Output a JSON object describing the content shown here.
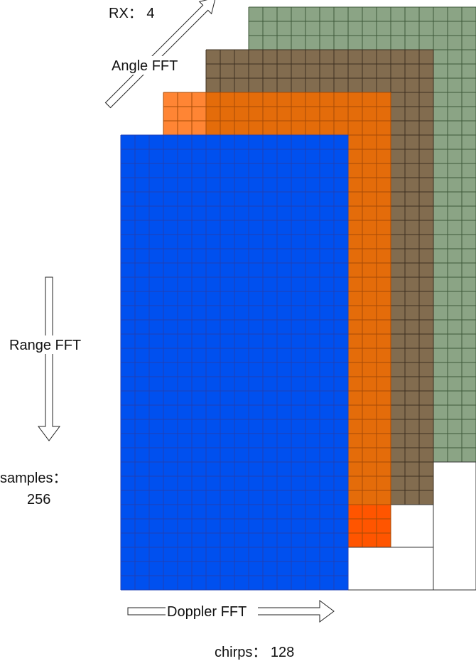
{
  "labels": {
    "rx": "RX： 4",
    "angle_fft": "Angle FFT",
    "range_fft": "Range FFT",
    "samples_line1": "samples：",
    "samples_line2": "256",
    "doppler_fft": "Doppler FFT",
    "chirps": "chirps： 128"
  },
  "colors": {
    "rx1": "#0050ef",
    "rx2": "#e46c0a",
    "rx2_highlight_top": "#ff8534",
    "rx2_highlight_bottom": "#ff5500",
    "rx3": "#826c4f",
    "rx4": "#8ba485",
    "rx1_grid": "#1f3fb5",
    "rx2_grid": "#a64a06",
    "rx3_grid": "#3d3020",
    "rx4_grid": "#3f5a3a",
    "outline": "#333333"
  }
}
